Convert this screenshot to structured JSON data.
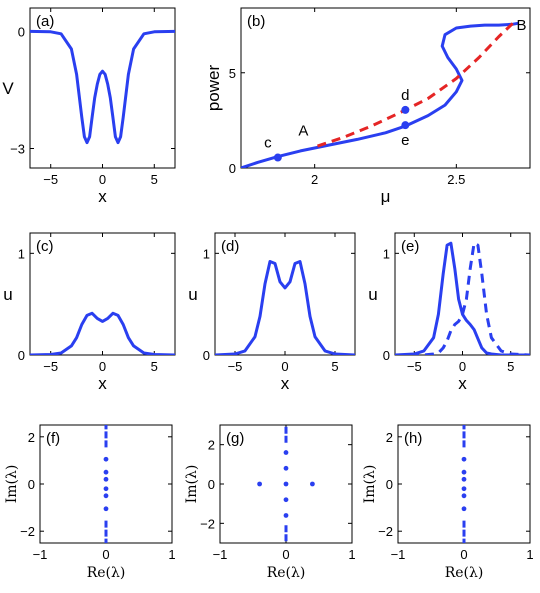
{
  "colors": {
    "solid": "#2a3ff0",
    "dashed": "#e52525"
  },
  "chart_data": [
    {
      "id": "a",
      "type": "line",
      "panel_label": "(a)",
      "xlabel": "x",
      "ylabel": "V",
      "xlim": [
        -7,
        7
      ],
      "ylim": [
        -3.5,
        0.6
      ],
      "xticks": [
        -5,
        0,
        5
      ],
      "yticks": [
        -3,
        0
      ],
      "xtick_labels": [
        "−5",
        "0",
        "5"
      ],
      "ytick_labels": [
        "−3",
        "0"
      ],
      "series": [
        {
          "style": "solid",
          "x": [
            -7,
            -5,
            -4,
            -3,
            -2.5,
            -2,
            -1.75,
            -1.5,
            -1.25,
            -1,
            -0.75,
            -0.5,
            -0.25,
            0,
            0.25,
            0.5,
            0.75,
            1,
            1.25,
            1.5,
            1.75,
            2,
            2.5,
            3,
            4,
            5,
            7
          ],
          "y": [
            0,
            -0.01,
            -0.06,
            -0.45,
            -1.1,
            -2.2,
            -2.7,
            -2.85,
            -2.7,
            -2.2,
            -1.7,
            -1.35,
            -1.1,
            -1.02,
            -1.1,
            -1.35,
            -1.7,
            -2.2,
            -2.7,
            -2.85,
            -2.7,
            -2.2,
            -1.1,
            -0.45,
            -0.06,
            -0.01,
            0
          ]
        }
      ]
    },
    {
      "id": "b",
      "type": "line",
      "panel_label": "(b)",
      "xlabel": "μ",
      "ylabel": "power",
      "xlim": [
        1.74,
        2.76
      ],
      "ylim": [
        0,
        8.4
      ],
      "xticks": [
        2,
        2.5
      ],
      "yticks": [
        0,
        5
      ],
      "xtick_labels": [
        "2",
        "2.5"
      ],
      "ytick_labels": [
        "0",
        "5"
      ],
      "series": [
        {
          "style": "solid",
          "x": [
            1.74,
            1.8,
            1.87,
            1.95,
            2.05,
            2.15,
            2.25,
            2.32,
            2.4,
            2.46,
            2.5,
            2.52,
            2.5,
            2.47,
            2.45,
            2.46,
            2.5,
            2.55,
            2.6,
            2.65,
            2.7,
            2.72
          ],
          "y": [
            0,
            0.3,
            0.6,
            0.9,
            1.2,
            1.5,
            1.85,
            2.2,
            2.75,
            3.3,
            4.0,
            4.6,
            5.2,
            5.8,
            6.4,
            7.0,
            7.35,
            7.45,
            7.5,
            7.5,
            7.55,
            7.6
          ]
        },
        {
          "style": "dashed",
          "x": [
            2.01,
            2.1,
            2.2,
            2.3,
            2.4,
            2.5,
            2.58,
            2.65,
            2.7
          ],
          "y": [
            1.15,
            1.6,
            2.2,
            2.9,
            3.65,
            4.7,
            5.8,
            6.9,
            7.6
          ]
        }
      ],
      "points": [
        {
          "label": "c",
          "x": 1.87,
          "y": 0.55
        },
        {
          "label": "d",
          "x": 2.32,
          "y": 3.05
        },
        {
          "label": "e",
          "x": 2.32,
          "y": 2.25
        }
      ],
      "annotations": [
        {
          "text": "A",
          "x": 1.96,
          "y": 1.7
        },
        {
          "text": "B",
          "x": 2.73,
          "y": 7.25
        }
      ]
    },
    {
      "id": "c",
      "type": "line",
      "panel_label": "(c)",
      "xlabel": "x",
      "ylabel": "u",
      "xlim": [
        -7,
        7
      ],
      "ylim": [
        0,
        1.2
      ],
      "xticks": [
        -5,
        0,
        5
      ],
      "yticks": [
        0,
        1
      ],
      "xtick_labels": [
        "−5",
        "0",
        "5"
      ],
      "ytick_labels": [
        "0",
        "1"
      ],
      "series": [
        {
          "style": "solid",
          "x": [
            -7,
            -5,
            -4,
            -3,
            -2.5,
            -2,
            -1.5,
            -1,
            -0.5,
            0,
            0.5,
            1,
            1.5,
            2,
            2.5,
            3,
            4,
            5,
            7
          ],
          "y": [
            0,
            0.005,
            0.02,
            0.09,
            0.17,
            0.3,
            0.39,
            0.41,
            0.36,
            0.33,
            0.36,
            0.41,
            0.39,
            0.3,
            0.17,
            0.09,
            0.02,
            0.005,
            0
          ]
        }
      ]
    },
    {
      "id": "d",
      "type": "line",
      "panel_label": "(d)",
      "xlabel": "x",
      "ylabel": "u",
      "xlim": [
        -7,
        7
      ],
      "ylim": [
        0,
        1.2
      ],
      "xticks": [
        -5,
        0,
        5
      ],
      "yticks": [
        0,
        1
      ],
      "xtick_labels": [
        "−5",
        "0",
        "5"
      ],
      "ytick_labels": [
        "0",
        "1"
      ],
      "series": [
        {
          "style": "solid",
          "x": [
            -7,
            -5,
            -4,
            -3,
            -2.5,
            -2,
            -1.5,
            -1,
            -0.5,
            0,
            0.5,
            1,
            1.5,
            2,
            2.5,
            3,
            4,
            5,
            7
          ],
          "y": [
            0,
            0.01,
            0.04,
            0.18,
            0.38,
            0.7,
            0.92,
            0.9,
            0.72,
            0.66,
            0.72,
            0.9,
            0.92,
            0.7,
            0.38,
            0.18,
            0.04,
            0.01,
            0
          ]
        }
      ]
    },
    {
      "id": "e",
      "type": "line",
      "panel_label": "(e)",
      "xlabel": "x",
      "ylabel": "u",
      "xlim": [
        -7,
        7
      ],
      "ylim": [
        0,
        1.2
      ],
      "xticks": [
        -5,
        0,
        5
      ],
      "yticks": [
        0,
        1
      ],
      "xtick_labels": [
        "−5",
        "0",
        "5"
      ],
      "ytick_labels": [
        "0",
        "1"
      ],
      "series": [
        {
          "style": "solid",
          "x": [
            -7,
            -5,
            -4,
            -3,
            -2.5,
            -2,
            -1.6,
            -1.2,
            -0.8,
            -0.4,
            0,
            0.4,
            0.8,
            1.2,
            1.6,
            2,
            2.5,
            3,
            4,
            5,
            7
          ],
          "y": [
            0,
            0.01,
            0.04,
            0.17,
            0.4,
            0.8,
            1.08,
            1.1,
            0.85,
            0.55,
            0.4,
            0.34,
            0.3,
            0.25,
            0.16,
            0.07,
            0.02,
            0.01,
            0,
            0,
            0
          ]
        },
        {
          "style": "dashed",
          "x": [
            -7,
            -5,
            -4,
            -3,
            -2.5,
            -2,
            -1.6,
            -1.2,
            -0.8,
            -0.4,
            0,
            0.4,
            0.8,
            1.2,
            1.6,
            2,
            2.5,
            3,
            4,
            5,
            7
          ],
          "y": [
            0,
            0,
            0,
            0.01,
            0.02,
            0.07,
            0.14,
            0.24,
            0.3,
            0.33,
            0.4,
            0.55,
            0.85,
            1.1,
            1.08,
            0.8,
            0.4,
            0.17,
            0.04,
            0.01,
            0
          ]
        }
      ]
    },
    {
      "id": "f",
      "type": "scatter",
      "panel_label": "(f)",
      "xlabel": "Re(λ)",
      "ylabel": "Im(λ)",
      "xlim": [
        -1,
        1
      ],
      "ylim": [
        -2.5,
        2.5
      ],
      "xticks": [
        -1,
        0,
        1
      ],
      "yticks": [
        -2,
        0,
        2
      ],
      "xtick_labels": [
        "−1",
        "0",
        "1"
      ],
      "ytick_labels": [
        "−2",
        "0",
        "2"
      ],
      "continuous_spectrum": {
        "re": 0,
        "imag_from": 1.55,
        "imag_to": 2.5
      },
      "points": [
        {
          "re": 0,
          "im": 0.5
        },
        {
          "re": 0,
          "im": 0.2
        },
        {
          "re": 0,
          "im": -0.2
        },
        {
          "re": 0,
          "im": -0.5
        },
        {
          "re": 0,
          "im": 1.05
        },
        {
          "re": 0,
          "im": -1.05
        }
      ]
    },
    {
      "id": "g",
      "type": "scatter",
      "panel_label": "(g)",
      "xlabel": "Re(λ)",
      "ylabel": "Im(λ)",
      "xlim": [
        -1,
        1
      ],
      "ylim": [
        -3,
        3
      ],
      "xticks": [
        -1,
        0,
        1
      ],
      "yticks": [
        -2,
        0,
        2
      ],
      "xtick_labels": [
        "−1",
        "0",
        "1"
      ],
      "ytick_labels": [
        "−2",
        "0",
        "2"
      ],
      "continuous_spectrum": {
        "re": 0,
        "imag_from": 2.1,
        "imag_to": 3
      },
      "points": [
        {
          "re": -0.4,
          "im": 0
        },
        {
          "re": 0,
          "im": 0
        },
        {
          "re": 0.4,
          "im": 0
        },
        {
          "re": 0,
          "im": 0.8
        },
        {
          "re": 0,
          "im": -0.8
        },
        {
          "re": 0,
          "im": 1.6
        },
        {
          "re": 0,
          "im": -1.6
        }
      ]
    },
    {
      "id": "h",
      "type": "scatter",
      "panel_label": "(h)",
      "xlabel": "Re(λ)",
      "ylabel": "Im(λ)",
      "xlim": [
        -1,
        1
      ],
      "ylim": [
        -2.5,
        2.5
      ],
      "xticks": [
        -1,
        0,
        1
      ],
      "yticks": [
        -2,
        0,
        2
      ],
      "xtick_labels": [
        "−1",
        "0",
        "1"
      ],
      "ytick_labels": [
        "−2",
        "0",
        "2"
      ],
      "continuous_spectrum": {
        "re": 0,
        "imag_from": 1.55,
        "imag_to": 2.5
      },
      "points": [
        {
          "re": 0,
          "im": 0.5
        },
        {
          "re": 0,
          "im": 0.2
        },
        {
          "re": 0,
          "im": -0.2
        },
        {
          "re": 0,
          "im": -0.5
        },
        {
          "re": 0,
          "im": 1.05
        },
        {
          "re": 0,
          "im": -1.05
        }
      ]
    }
  ]
}
